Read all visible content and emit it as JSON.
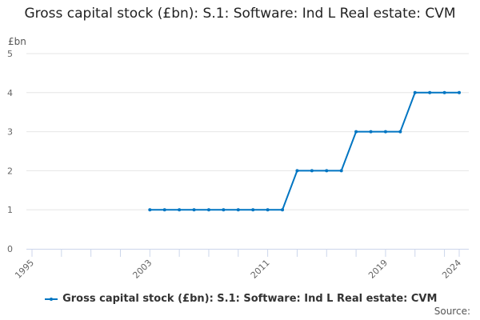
{
  "chart_data": {
    "type": "line",
    "title": "Gross capital stock (£bn): S.1: Software: Ind L Real estate: CVM",
    "ylabel": "£bn",
    "xlabel": "",
    "ylim": [
      0,
      5
    ],
    "xlim": [
      1995,
      2024
    ],
    "yticks": [
      0,
      1,
      2,
      3,
      4,
      5
    ],
    "xticks": [
      1995,
      2003,
      2011,
      2019,
      2024
    ],
    "grid": true,
    "legend_position": "bottom",
    "series": [
      {
        "name": "Gross capital stock (£bn): S.1: Software: Ind L Real estate: CVM",
        "color": "#0075c2",
        "x": [
          2003,
          2004,
          2005,
          2006,
          2007,
          2008,
          2009,
          2010,
          2011,
          2012,
          2013,
          2014,
          2015,
          2016,
          2017,
          2018,
          2019,
          2020,
          2021,
          2022,
          2023,
          2024
        ],
        "values": [
          1,
          1,
          1,
          1,
          1,
          1,
          1,
          1,
          1,
          1,
          2,
          2,
          2,
          2,
          3,
          3,
          3,
          3,
          4,
          4,
          4,
          4
        ]
      }
    ]
  },
  "source_label": "Source:"
}
